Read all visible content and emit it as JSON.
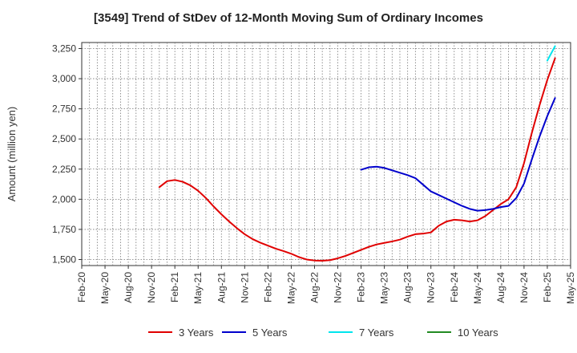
{
  "chart_data": {
    "type": "line",
    "title": "[3549]  Trend of StDev of 12-Month Moving Sum of Ordinary Incomes",
    "ylabel": "Amount (million yen)",
    "xlabel": "",
    "ylim": [
      1450,
      3300
    ],
    "xlim": [
      "2020-02",
      "2025-05"
    ],
    "yticks": [
      1500,
      1750,
      2000,
      2250,
      2500,
      2750,
      3000,
      3250
    ],
    "ytick_labels": [
      "1,500",
      "1,750",
      "2,000",
      "2,250",
      "2,500",
      "2,750",
      "3,000",
      "3,250"
    ],
    "xticks": [
      "2020-02",
      "2020-05",
      "2020-08",
      "2020-11",
      "2021-02",
      "2021-05",
      "2021-08",
      "2021-11",
      "2022-02",
      "2022-05",
      "2022-08",
      "2022-11",
      "2023-02",
      "2023-05",
      "2023-08",
      "2023-11",
      "2024-02",
      "2024-05",
      "2024-08",
      "2024-11",
      "2025-02",
      "2025-05"
    ],
    "xtick_labels": [
      "Feb-20",
      "May-20",
      "Aug-20",
      "Nov-20",
      "Feb-21",
      "May-21",
      "Aug-21",
      "Nov-21",
      "Feb-22",
      "May-22",
      "Aug-22",
      "Nov-22",
      "Feb-23",
      "May-23",
      "Aug-23",
      "Nov-23",
      "Feb-24",
      "May-24",
      "Aug-24",
      "Nov-24",
      "Feb-25",
      "May-25"
    ],
    "grid": true,
    "legend_position": "bottom",
    "series": [
      {
        "name": "3 Years",
        "color": "#e00000",
        "points": [
          [
            "2020-12",
            2100
          ],
          [
            "2021-01",
            2150
          ],
          [
            "2021-02",
            2160
          ],
          [
            "2021-03",
            2145
          ],
          [
            "2021-04",
            2115
          ],
          [
            "2021-05",
            2070
          ],
          [
            "2021-06",
            2010
          ],
          [
            "2021-07",
            1940
          ],
          [
            "2021-08",
            1875
          ],
          [
            "2021-09",
            1815
          ],
          [
            "2021-10",
            1760
          ],
          [
            "2021-11",
            1710
          ],
          [
            "2021-12",
            1670
          ],
          [
            "2021-01_",
            null
          ],
          [
            "2022-01",
            1640
          ],
          [
            "2022-02",
            1615
          ],
          [
            "2022-03",
            1590
          ],
          [
            "2022-04",
            1570
          ],
          [
            "2022-05",
            1548
          ],
          [
            "2022-06",
            1520
          ],
          [
            "2022-07",
            1500
          ],
          [
            "2022-08",
            1492
          ],
          [
            "2022-09",
            1490
          ],
          [
            "2022-10",
            1495
          ],
          [
            "2022-11",
            1510
          ],
          [
            "2022-12",
            1530
          ],
          [
            "2023-01",
            1555
          ],
          [
            "2023-02",
            1580
          ],
          [
            "2023-03",
            1605
          ],
          [
            "2023-04",
            1625
          ],
          [
            "2023-05",
            1638
          ],
          [
            "2023-06",
            1650
          ],
          [
            "2023-07",
            1665
          ],
          [
            "2023-08",
            1690
          ],
          [
            "2023-09",
            1710
          ],
          [
            "2023-10",
            1715
          ],
          [
            "2023-11",
            1725
          ],
          [
            "2023-12",
            1780
          ],
          [
            "2024-01",
            1815
          ],
          [
            "2024-02",
            1830
          ],
          [
            "2024-03",
            1825
          ],
          [
            "2024-04",
            1815
          ],
          [
            "2024-05",
            1825
          ],
          [
            "2024-06",
            1860
          ],
          [
            "2024-07",
            1910
          ],
          [
            "2024-08",
            1960
          ],
          [
            "2024-09",
            2000
          ],
          [
            "2024-10",
            2100
          ],
          [
            "2024-11",
            2300
          ],
          [
            "2024-12",
            2550
          ],
          [
            "2025-01",
            2780
          ],
          [
            "2025-02",
            2990
          ],
          [
            "2025-03",
            3170
          ]
        ]
      },
      {
        "name": "5 Years",
        "color": "#0000cc",
        "points": [
          [
            "2023-02",
            2245
          ],
          [
            "2023-03",
            2265
          ],
          [
            "2023-04",
            2270
          ],
          [
            "2023-05",
            2260
          ],
          [
            "2023-06",
            2240
          ],
          [
            "2023-07",
            2220
          ],
          [
            "2023-08",
            2200
          ],
          [
            "2023-09",
            2175
          ],
          [
            "2023-10",
            2120
          ],
          [
            "2023-11",
            2065
          ],
          [
            "2023-12",
            2035
          ],
          [
            "2024-01",
            2005
          ],
          [
            "2024-02",
            1975
          ],
          [
            "2024-03",
            1945
          ],
          [
            "2024-04",
            1920
          ],
          [
            "2024-05",
            1905
          ],
          [
            "2024-06",
            1910
          ],
          [
            "2024-07",
            1920
          ],
          [
            "2024-08",
            1935
          ],
          [
            "2024-09",
            1945
          ],
          [
            "2024-10",
            2010
          ],
          [
            "2024-11",
            2130
          ],
          [
            "2024-12",
            2330
          ],
          [
            "2025-01",
            2520
          ],
          [
            "2025-02",
            2690
          ],
          [
            "2025-03",
            2840
          ]
        ]
      },
      {
        "name": "7 Years",
        "color": "#00e5ee",
        "points": [
          [
            "2025-02",
            3150
          ],
          [
            "2025-03",
            3270
          ]
        ]
      },
      {
        "name": "10 Years",
        "color": "#228b22",
        "points": []
      }
    ]
  }
}
